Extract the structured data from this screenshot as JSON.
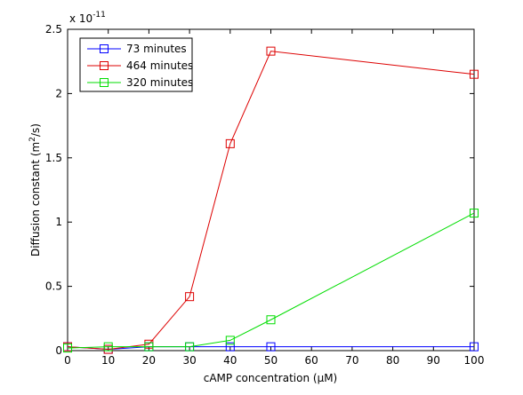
{
  "chart_data": {
    "type": "line",
    "xlabel": "cAMP concentration (µM)",
    "ylabel_main": "Diffusion constant (m",
    "ylabel_sup": "2",
    "ylabel_tail": "/s)",
    "exponent_prefix": "x 10",
    "exponent_power": "-11",
    "xlim": [
      0,
      100
    ],
    "ylim": [
      0,
      2.5
    ],
    "xticks": [
      0,
      10,
      20,
      30,
      40,
      50,
      60,
      70,
      80,
      90,
      100
    ],
    "yticks": [
      0,
      0.5,
      1,
      1.5,
      2,
      2.5
    ],
    "xtick_labels": [
      "0",
      "10",
      "20",
      "30",
      "40",
      "50",
      "60",
      "70",
      "80",
      "90",
      "100"
    ],
    "ytick_labels": [
      "0",
      "0.5",
      "1",
      "1.5",
      "2",
      "2.5"
    ],
    "legend_position": "top-left",
    "grid": false,
    "x": [
      0,
      10,
      20,
      30,
      40,
      50,
      100
    ],
    "series": [
      {
        "name": "73 minutes",
        "color": "#0000ff",
        "marker": "square",
        "values": [
          0.03,
          0.01,
          0.03,
          0.03,
          0.03,
          0.03,
          0.03
        ]
      },
      {
        "name": "464 minutes",
        "color": "#dd0000",
        "marker": "square",
        "values": [
          0.03,
          0.01,
          0.05,
          0.42,
          1.61,
          2.33,
          2.15
        ]
      },
      {
        "name": "320 minutes",
        "color": "#00dd00",
        "marker": "square",
        "values": [
          0.02,
          0.03,
          0.03,
          0.03,
          0.08,
          0.24,
          1.07
        ]
      }
    ]
  }
}
